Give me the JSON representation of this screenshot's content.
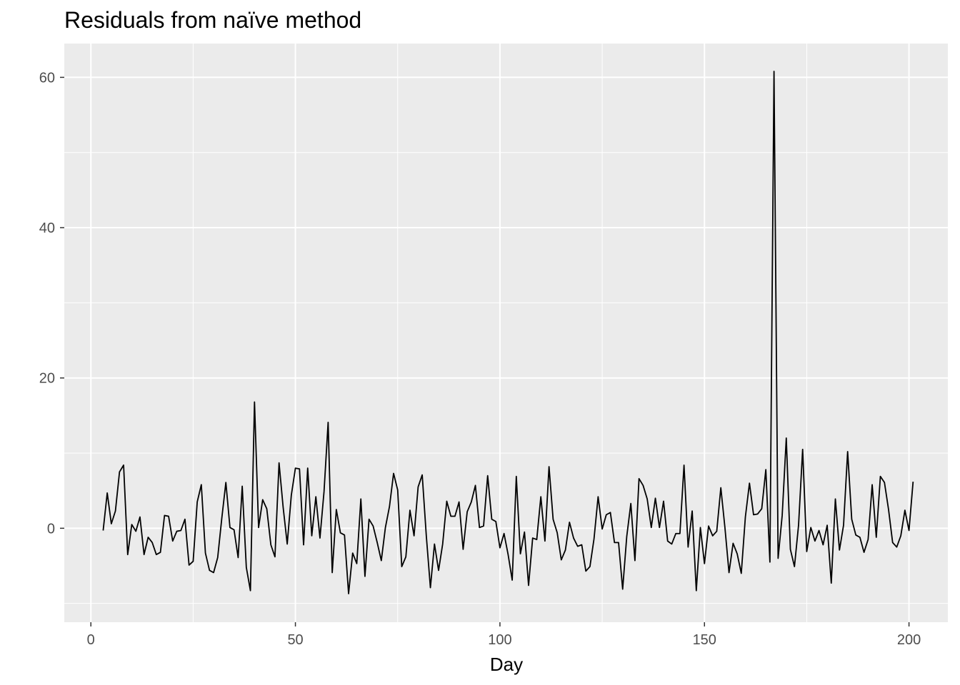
{
  "chart_data": {
    "type": "line",
    "title": "Residuals from naïve method",
    "xlabel": "Day",
    "ylabel": "",
    "xlim": [
      -6.5,
      209.5
    ],
    "ylim": [
      -12.5,
      64.5
    ],
    "x_ticks": [
      0,
      50,
      100,
      150,
      200
    ],
    "x_tick_labels": [
      "0",
      "50",
      "100",
      "150",
      "200"
    ],
    "y_ticks": [
      0,
      20,
      40,
      60
    ],
    "y_tick_labels": [
      "0",
      "20",
      "40",
      "60"
    ],
    "grid": true,
    "legend": "none",
    "series": [
      {
        "x_start": 3,
        "values": [
          -0.3,
          4.7,
          0.6,
          2.3,
          7.5,
          8.4,
          -3.5,
          0.5,
          -0.4,
          1.5,
          -3.5,
          -1.2,
          -1.9,
          -3.5,
          -3.2,
          1.7,
          1.6,
          -1.7,
          -0.4,
          -0.3,
          1.2,
          -4.9,
          -4.4,
          3.5,
          5.8,
          -3.3,
          -5.6,
          -5.9,
          -3.9,
          1.3,
          6.1,
          0.1,
          -0.2,
          -3.9,
          5.6,
          -5.2,
          -8.3,
          16.8,
          0.1,
          3.8,
          2.6,
          -2.2,
          -3.8,
          8.7,
          2.8,
          -2.1,
          4.4,
          8.0,
          7.9,
          -2.2,
          8.0,
          -1.0,
          4.2,
          -1.3,
          4.9,
          14.1,
          -5.9,
          2.5,
          -0.6,
          -0.9,
          -8.7,
          -3.3,
          -4.7,
          3.9,
          -6.4,
          1.2,
          0.3,
          -1.9,
          -4.3,
          0.1,
          2.9,
          7.3,
          5.1,
          -5.1,
          -3.8,
          2.4,
          -1.0,
          5.5,
          7.1,
          -1.0,
          -7.9,
          -2.1,
          -5.6,
          -2.1,
          3.6,
          1.6,
          1.6,
          3.5,
          -2.8,
          2.2,
          3.5,
          5.7,
          0.1,
          0.3,
          7.0,
          1.2,
          0.9,
          -2.6,
          -0.7,
          -3.5,
          -6.9,
          6.9,
          -3.4,
          -0.5,
          -7.6,
          -1.3,
          -1.5,
          4.2,
          -1.7,
          8.2,
          1.2,
          -0.6,
          -4.2,
          -2.9,
          0.8,
          -1.3,
          -2.4,
          -2.2,
          -5.7,
          -5.1,
          -1.4,
          4.2,
          -0.1,
          1.8,
          2.1,
          -1.9,
          -1.9,
          -8.1,
          -1.1,
          3.3,
          -4.3,
          6.6,
          5.7,
          3.9,
          0.1,
          4.0,
          0.1,
          3.6,
          -1.7,
          -2.1,
          -0.7,
          -0.7,
          8.4,
          -2.5,
          2.3,
          -8.3,
          0.1,
          -4.7,
          0.3,
          -1.0,
          -0.4,
          5.4,
          0.1,
          -5.9,
          -2.0,
          -3.4,
          -6.0,
          1.5,
          6.0,
          1.8,
          1.9,
          2.6,
          7.8,
          -4.5,
          60.8,
          -4.0,
          1.7,
          12.0,
          -2.8,
          -5.1,
          0.4,
          10.5,
          -3.1,
          0.1,
          -1.7,
          -0.3,
          -2.2,
          0.4,
          -7.3,
          3.9,
          -2.9,
          0.4,
          10.2,
          1.2,
          -0.9,
          -1.2,
          -3.2,
          -1.5,
          5.8,
          -1.2,
          6.9,
          6.1,
          2.5,
          -1.9,
          -2.5,
          -1.0,
          2.4,
          -0.3,
          6.2
        ]
      }
    ]
  }
}
